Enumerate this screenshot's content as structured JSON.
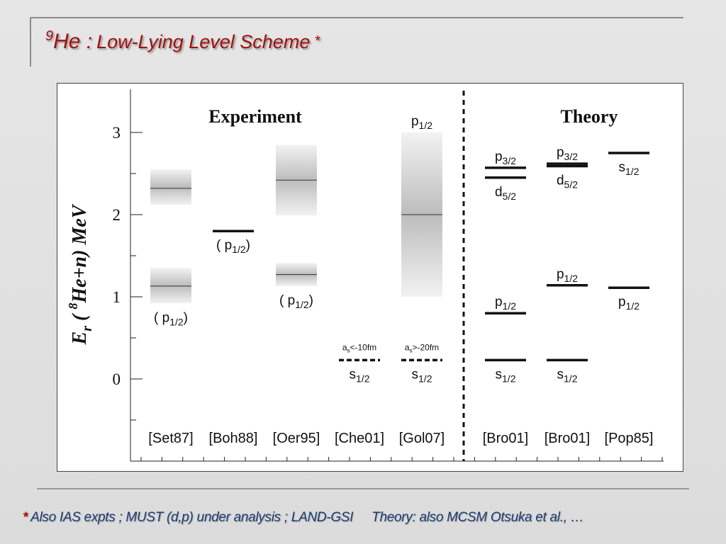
{
  "slide": {
    "title_sup": "9",
    "title_main": "He :",
    "title_sub": "Low-Lying Level Scheme",
    "title_asterisk": "*",
    "footnote_star": "*",
    "footnote_text": "Also IAS expts ; MUST (d,p) under analysis ; LAND-GSI",
    "footnote_theory": "Theory: also MCSM Otsuka et al., …",
    "colors": {
      "title": "#a01010",
      "footnote": "#1f3d73",
      "star": "#b01010"
    }
  },
  "diagram": {
    "y_axis": {
      "prefix": "E",
      "prefix_sub": "r",
      "paren_open": " ( ",
      "sup": "8",
      "nucleus": "He+n)",
      "unit": "MeV",
      "range": [
        -1,
        3.5
      ],
      "ticks": [
        0,
        1,
        2,
        3
      ]
    },
    "section_labels": {
      "experiment": "Experiment",
      "theory": "Theory"
    },
    "columns": [
      {
        "label": "[Set87]",
        "group": "experiment"
      },
      {
        "label": "[Boh88]",
        "group": "experiment"
      },
      {
        "label": "[Oer95]",
        "group": "experiment"
      },
      {
        "label": "[Che01]",
        "group": "experiment"
      },
      {
        "label": "[Gol07]",
        "group": "experiment"
      },
      {
        "label": "[Bro01]",
        "group": "theory"
      },
      {
        "label": "[Bro01]",
        "group": "theory"
      },
      {
        "label": "[Pop85]",
        "group": "theory"
      }
    ],
    "levels": [
      {
        "col": 0,
        "energy": 2.32,
        "width_low": 2.12,
        "width_high": 2.55,
        "style": "band"
      },
      {
        "col": 0,
        "energy": 1.13,
        "width_low": 0.92,
        "width_high": 1.35,
        "style": "band",
        "label": "( p",
        "label_sub": "1/2",
        "label_end": ")",
        "label_pos": "below"
      },
      {
        "col": 1,
        "energy": 1.8,
        "style": "solid",
        "label": "( p",
        "label_sub": "1/2",
        "label_end": ")",
        "label_pos": "below"
      },
      {
        "col": 2,
        "energy": 2.42,
        "width_low": 1.99,
        "width_high": 2.85,
        "style": "band"
      },
      {
        "col": 2,
        "energy": 1.27,
        "width_low": 1.13,
        "width_high": 1.41,
        "style": "band",
        "label": "( p",
        "label_sub": "1/2",
        "label_end": ")",
        "label_pos": "below"
      },
      {
        "col": 3,
        "energy": 0.23,
        "style": "dashed",
        "label": "s",
        "label_sub": "1/2",
        "label_pos": "below",
        "note": "a",
        "note_sub": "s",
        "note_rest": "<-10fm"
      },
      {
        "col": 4,
        "energy": 2.0,
        "width_low": 1.0,
        "width_high": 3.0,
        "style": "band",
        "label": "p",
        "label_sub": "1/2",
        "label_pos": "above-band"
      },
      {
        "col": 4,
        "energy": 0.23,
        "style": "dashed",
        "label": "s",
        "label_sub": "1/2",
        "label_pos": "below",
        "note": "a",
        "note_sub": "s",
        "note_rest": ">-20fm"
      },
      {
        "col": 5,
        "energy": 2.57,
        "style": "solid",
        "label": "p",
        "label_sub": "3/2",
        "label_pos": "above"
      },
      {
        "col": 5,
        "energy": 2.45,
        "style": "solid",
        "label": "d",
        "label_sub": "5/2",
        "label_pos": "below"
      },
      {
        "col": 5,
        "energy": 0.8,
        "style": "solid",
        "label": "p",
        "label_sub": "1/2",
        "label_pos": "above"
      },
      {
        "col": 5,
        "energy": 0.23,
        "style": "solid",
        "label": "s",
        "label_sub": "1/2",
        "label_pos": "below"
      },
      {
        "col": 6,
        "energy": 2.62,
        "style": "solid",
        "label": "p",
        "label_sub": "3/2",
        "label_pos": "above"
      },
      {
        "col": 6,
        "energy": 2.59,
        "style": "solid",
        "label": "d",
        "label_sub": "5/2",
        "label_pos": "below"
      },
      {
        "col": 6,
        "energy": 1.14,
        "style": "solid",
        "label": "p",
        "label_sub": "1/2",
        "label_pos": "above"
      },
      {
        "col": 6,
        "energy": 0.23,
        "style": "solid",
        "label": "s",
        "label_sub": "1/2",
        "label_pos": "below"
      },
      {
        "col": 7,
        "energy": 2.75,
        "style": "solid",
        "label": "s",
        "label_sub": "1/2",
        "label_pos": "below"
      },
      {
        "col": 7,
        "energy": 1.11,
        "style": "solid",
        "label": "p",
        "label_sub": "1/2",
        "label_pos": "below"
      }
    ]
  }
}
